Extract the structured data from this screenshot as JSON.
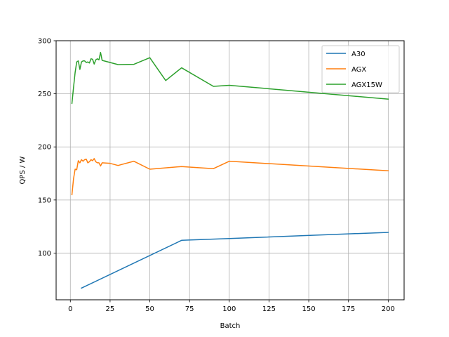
{
  "chart_data": {
    "type": "line",
    "title": "",
    "xlabel": "Batch",
    "ylabel": "QPS / W",
    "xlim": [
      -8.95,
      210
    ],
    "ylim": [
      56,
      300
    ],
    "xticks": [
      0,
      25,
      50,
      75,
      100,
      125,
      150,
      175,
      200
    ],
    "yticks": [
      100,
      150,
      200,
      250,
      300
    ],
    "grid": true,
    "legend_position": "top-right",
    "series": [
      {
        "name": "A30",
        "color": "#1f77b4",
        "points": [
          [
            7,
            67
          ],
          [
            70,
            112
          ],
          [
            100,
            113.7
          ],
          [
            200,
            119.5
          ]
        ]
      },
      {
        "name": "AGX",
        "color": "#ff7f0e",
        "points": [
          [
            1,
            155
          ],
          [
            2,
            170
          ],
          [
            3,
            179
          ],
          [
            4,
            178.5
          ],
          [
            5,
            187
          ],
          [
            6,
            185
          ],
          [
            7,
            188
          ],
          [
            8,
            186.5
          ],
          [
            9,
            188
          ],
          [
            10,
            188.5
          ],
          [
            11,
            185
          ],
          [
            12,
            186
          ],
          [
            13,
            188
          ],
          [
            14,
            187
          ],
          [
            15,
            189
          ],
          [
            16,
            186
          ],
          [
            17,
            185
          ],
          [
            18,
            185
          ],
          [
            19,
            182
          ],
          [
            20,
            185
          ],
          [
            25,
            184.5
          ],
          [
            30,
            182.5
          ],
          [
            40,
            186.5
          ],
          [
            50,
            179
          ],
          [
            70,
            181.5
          ],
          [
            90,
            179.5
          ],
          [
            100,
            186.5
          ],
          [
            200,
            177.5
          ]
        ]
      },
      {
        "name": "AGX15W",
        "color": "#2ca02c",
        "points": [
          [
            1,
            241
          ],
          [
            2,
            256
          ],
          [
            3,
            270
          ],
          [
            4,
            280
          ],
          [
            5,
            281
          ],
          [
            6,
            273
          ],
          [
            7,
            280
          ],
          [
            8,
            281
          ],
          [
            9,
            281
          ],
          [
            10,
            279.5
          ],
          [
            11,
            280
          ],
          [
            12,
            279
          ],
          [
            13,
            283
          ],
          [
            14,
            282.5
          ],
          [
            15,
            278
          ],
          [
            16,
            282
          ],
          [
            17,
            283
          ],
          [
            18,
            282
          ],
          [
            19,
            289
          ],
          [
            20,
            281.5
          ],
          [
            30,
            277.5
          ],
          [
            40,
            277.8
          ],
          [
            50,
            284
          ],
          [
            60,
            262.5
          ],
          [
            70,
            274.5
          ],
          [
            90,
            257
          ],
          [
            100,
            258
          ],
          [
            200,
            245
          ]
        ]
      }
    ]
  }
}
